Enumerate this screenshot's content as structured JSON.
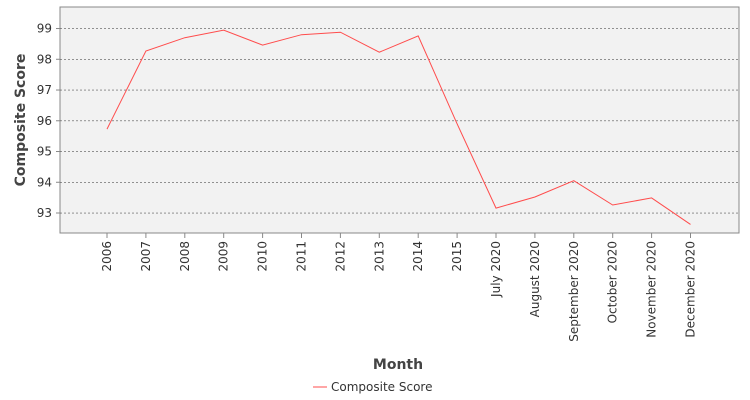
{
  "chart_data": {
    "type": "line",
    "xlabel": "Month",
    "ylabel": "Composite Score",
    "categories": [
      "2006",
      "2007",
      "2008",
      "2009",
      "2010",
      "2011",
      "2012",
      "2013",
      "2014",
      "2015",
      "July 2020",
      "August 2020",
      "September 2020",
      "October 2020",
      "November 2020",
      "December 2020"
    ],
    "series": [
      {
        "name": "Composite Score",
        "values": [
          95.73,
          98.27,
          98.7,
          98.95,
          98.46,
          98.8,
          98.88,
          98.23,
          98.76,
          95.9,
          93.16,
          93.52,
          94.05,
          93.26,
          93.49,
          92.63
        ],
        "color": "#ff4c4c"
      }
    ],
    "ylim": [
      92.35,
      99.7
    ],
    "yticks": [
      93,
      94,
      95,
      96,
      97,
      98,
      99
    ],
    "grid": true,
    "legend_position": "bottom",
    "plot_background": "#f2f2f2"
  }
}
